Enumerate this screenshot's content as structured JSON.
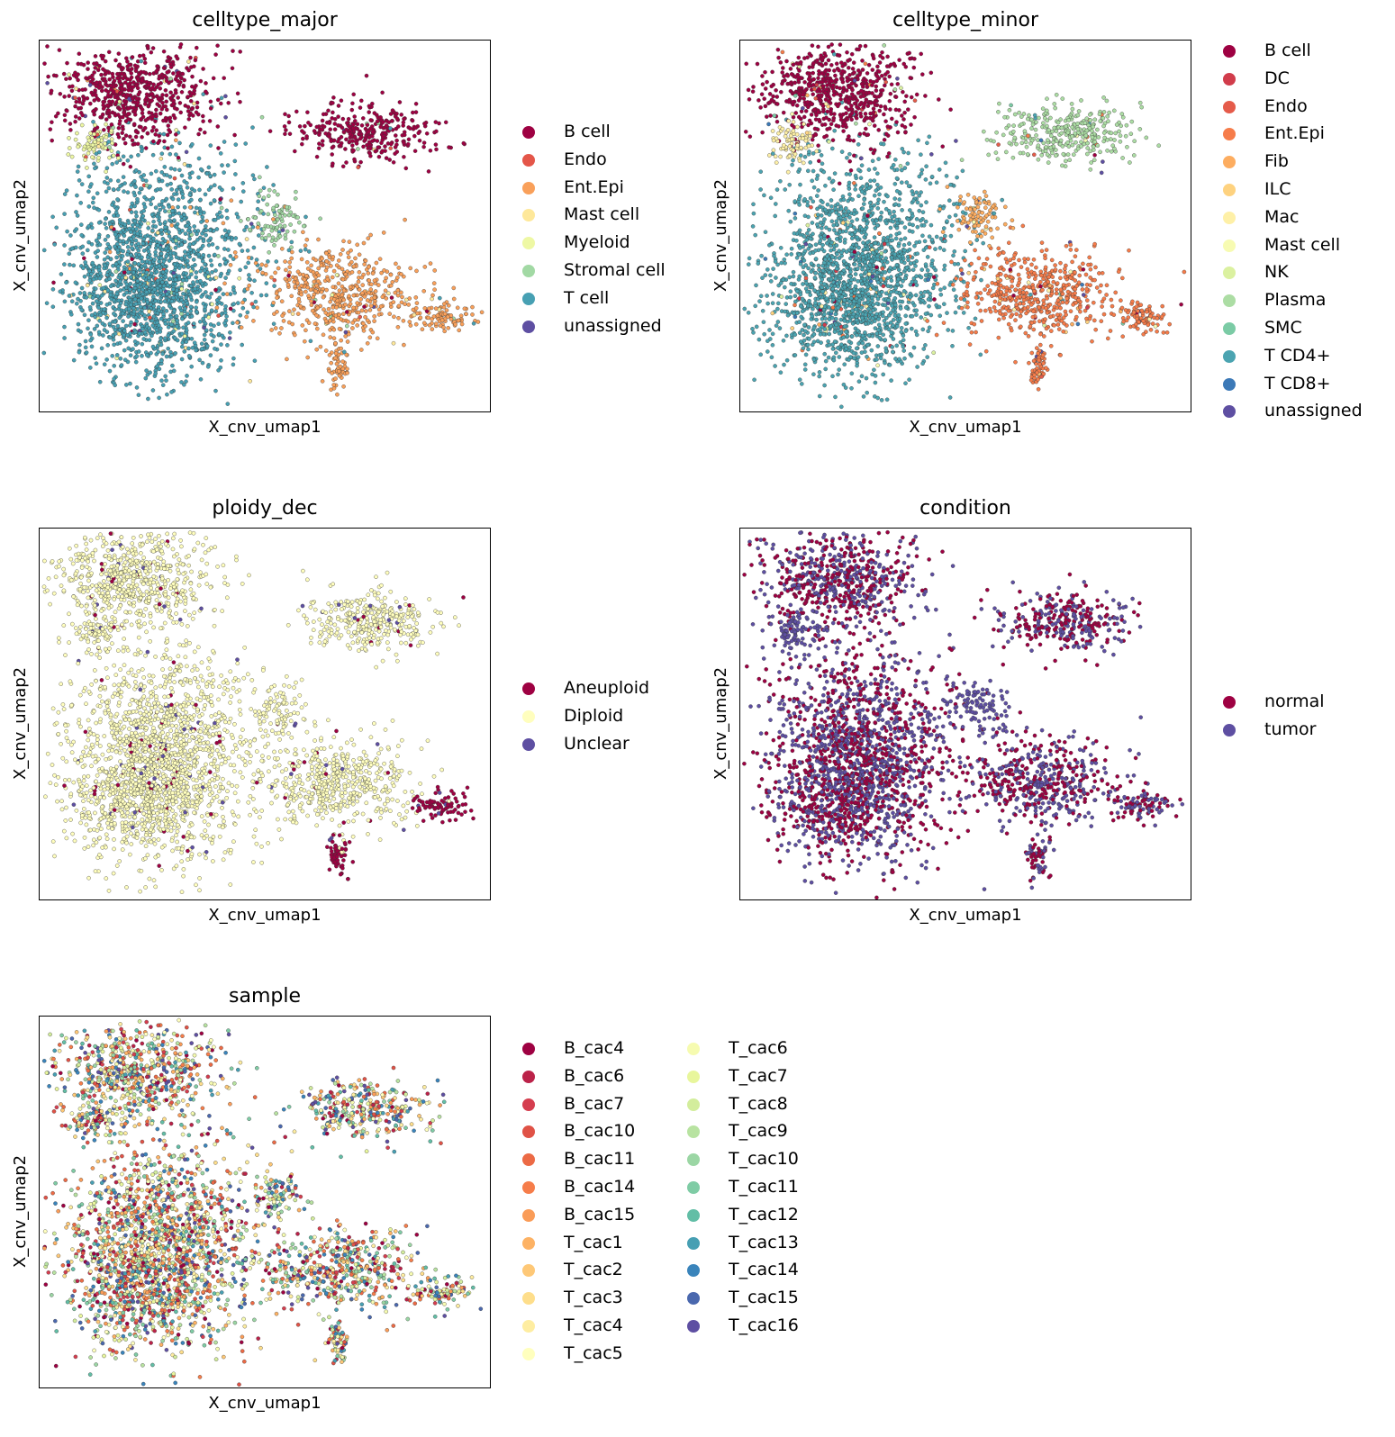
{
  "chart_data": [
    {
      "type": "scatter",
      "title": "celltype_major",
      "xlabel": "X_cnv_umap1",
      "ylabel": "X_cnv_umap2",
      "legend_placement": "right",
      "legend_columns": 1,
      "categories": [
        {
          "name": "B cell",
          "color": "#9e0142"
        },
        {
          "name": "Endo",
          "color": "#e45649"
        },
        {
          "name": "Ent.Epi",
          "color": "#f9a05a"
        },
        {
          "name": "Mast cell",
          "color": "#fee89a"
        },
        {
          "name": "Myeloid",
          "color": "#eef8a4"
        },
        {
          "name": "Stromal cell",
          "color": "#a2d9a4"
        },
        {
          "name": "T cell",
          "color": "#47a0b3"
        },
        {
          "name": "unassigned",
          "color": "#5e4fa2"
        }
      ],
      "cluster_assignment": {
        "upper_left": "B cell",
        "upper_right": "B cell",
        "main": "T cell",
        "right_arm": "Ent.Epi",
        "neck": "Myeloid",
        "bridge": "Stromal cell"
      }
    },
    {
      "type": "scatter",
      "title": "celltype_minor",
      "xlabel": "X_cnv_umap1",
      "ylabel": "X_cnv_umap2",
      "legend_placement": "right",
      "legend_columns": 1,
      "categories": [
        {
          "name": "B cell",
          "color": "#9e0142"
        },
        {
          "name": "DC",
          "color": "#d13c4b"
        },
        {
          "name": "Endo",
          "color": "#e55b4a"
        },
        {
          "name": "Ent.Epi",
          "color": "#f67c4a"
        },
        {
          "name": "Fib",
          "color": "#fdad60"
        },
        {
          "name": "ILC",
          "color": "#fed27f"
        },
        {
          "name": "Mac",
          "color": "#fef0a7"
        },
        {
          "name": "Mast cell",
          "color": "#f7fbb2"
        },
        {
          "name": "NK",
          "color": "#dbf1a0"
        },
        {
          "name": "Plasma",
          "color": "#acdda4"
        },
        {
          "name": "SMC",
          "color": "#7bcba5"
        },
        {
          "name": "T CD4+",
          "color": "#4ba4b1"
        },
        {
          "name": "T CD8+",
          "color": "#3c79b7"
        },
        {
          "name": "unassigned",
          "color": "#5e4fa2"
        }
      ],
      "cluster_assignment": {
        "upper_left": "B cell",
        "upper_right": "Plasma",
        "main": "T CD4+",
        "right_arm": "Ent.Epi",
        "neck": "Mac",
        "bridge": "Fib"
      }
    },
    {
      "type": "scatter",
      "title": "ploidy_dec",
      "xlabel": "X_cnv_umap1",
      "ylabel": "X_cnv_umap2",
      "legend_placement": "right",
      "legend_columns": 1,
      "categories": [
        {
          "name": "Aneuploid",
          "color": "#9e0142"
        },
        {
          "name": "Diploid",
          "color": "#fffebe"
        },
        {
          "name": "Unclear",
          "color": "#5e4fa2"
        }
      ],
      "cluster_assignment": {
        "upper_left": "Diploid",
        "upper_right": "Diploid",
        "main": "Diploid",
        "right_arm": "Diploid",
        "neck": "Diploid",
        "bridge": "Diploid",
        "arm_tip": "Aneuploid",
        "tail": "Aneuploid"
      }
    },
    {
      "type": "scatter",
      "title": "condition",
      "xlabel": "X_cnv_umap1",
      "ylabel": "X_cnv_umap2",
      "legend_placement": "right",
      "legend_columns": 1,
      "categories": [
        {
          "name": "normal",
          "color": "#9e0142"
        },
        {
          "name": "tumor",
          "color": "#5e4fa2"
        }
      ],
      "cluster_assignment": {
        "upper_left": "mixed",
        "upper_right": "mixed",
        "main": "mixed",
        "right_arm": "mixed",
        "neck": "tumor",
        "bridge": "tumor"
      }
    },
    {
      "type": "scatter",
      "title": "sample",
      "xlabel": "X_cnv_umap1",
      "ylabel": "X_cnv_umap2",
      "legend_placement": "right",
      "legend_columns": 2,
      "categories": [
        {
          "name": "B_cac4",
          "color": "#9e0142"
        },
        {
          "name": "B_cac6",
          "color": "#bb2249"
        },
        {
          "name": "B_cac7",
          "color": "#d53e4f"
        },
        {
          "name": "B_cac10",
          "color": "#e05246"
        },
        {
          "name": "B_cac11",
          "color": "#ec6a45"
        },
        {
          "name": "B_cac14",
          "color": "#f67d4a"
        },
        {
          "name": "B_cac15",
          "color": "#fa9c58"
        },
        {
          "name": "T_cac1",
          "color": "#fdb264"
        },
        {
          "name": "T_cac2",
          "color": "#fec877"
        },
        {
          "name": "T_cac3",
          "color": "#fede8b"
        },
        {
          "name": "T_cac4",
          "color": "#feeda1"
        },
        {
          "name": "T_cac5",
          "color": "#ffffbe"
        },
        {
          "name": "T_cac6",
          "color": "#f6fbb0"
        },
        {
          "name": "T_cac7",
          "color": "#e8f69c"
        },
        {
          "name": "T_cac8",
          "color": "#d3ed9c"
        },
        {
          "name": "T_cac9",
          "color": "#b8e3a1"
        },
        {
          "name": "T_cac10",
          "color": "#9bd6a4"
        },
        {
          "name": "T_cac11",
          "color": "#7fcca5"
        },
        {
          "name": "T_cac12",
          "color": "#62bea6"
        },
        {
          "name": "T_cac13",
          "color": "#479fb3"
        },
        {
          "name": "T_cac14",
          "color": "#3a84bb"
        },
        {
          "name": "T_cac15",
          "color": "#4a68ae"
        },
        {
          "name": "T_cac16",
          "color": "#5e4fa2"
        }
      ],
      "cluster_assignment": {
        "upper_left": "mixed",
        "upper_right": "mixed",
        "main": "mixed",
        "right_arm": "mixed",
        "neck": "mixed",
        "bridge": "mixed"
      }
    }
  ]
}
